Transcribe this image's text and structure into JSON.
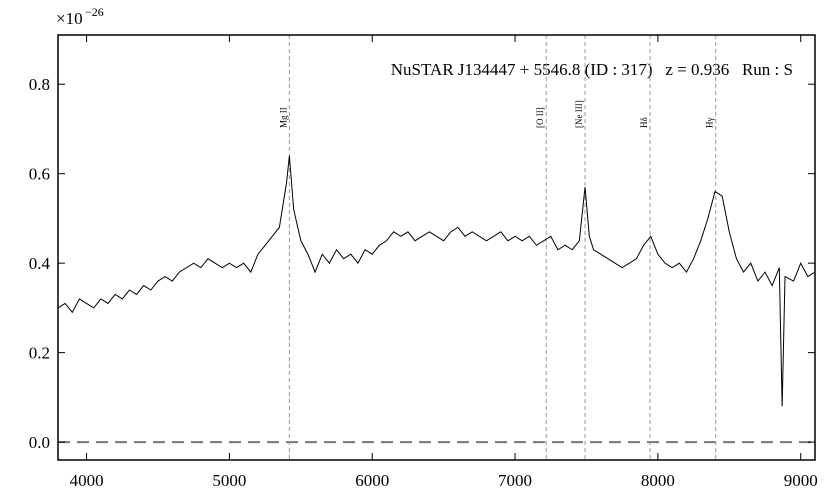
{
  "chart_data": {
    "type": "line",
    "title": "NuSTAR J134447 + 5546.8 (ID : 317)   z = 0.936   Run : S",
    "y_offset": {
      "base": "×10",
      "exponent": "−26"
    },
    "x": [
      3800,
      3850,
      3900,
      3950,
      4000,
      4050,
      4100,
      4150,
      4200,
      4250,
      4300,
      4350,
      4400,
      4450,
      4500,
      4550,
      4600,
      4650,
      4700,
      4750,
      4800,
      4850,
      4900,
      4950,
      5000,
      5050,
      5100,
      5150,
      5200,
      5250,
      5300,
      5350,
      5400,
      5420,
      5450,
      5500,
      5550,
      5600,
      5650,
      5700,
      5750,
      5800,
      5850,
      5900,
      5950,
      6000,
      6050,
      6100,
      6150,
      6200,
      6250,
      6300,
      6350,
      6400,
      6450,
      6500,
      6550,
      6600,
      6650,
      6700,
      6750,
      6800,
      6850,
      6900,
      6950,
      7000,
      7050,
      7100,
      7150,
      7200,
      7250,
      7300,
      7350,
      7400,
      7450,
      7490,
      7520,
      7550,
      7600,
      7650,
      7700,
      7750,
      7800,
      7850,
      7900,
      7950,
      8000,
      8050,
      8100,
      8150,
      8200,
      8250,
      8300,
      8350,
      8400,
      8450,
      8500,
      8550,
      8600,
      8650,
      8700,
      8750,
      8800,
      8850,
      8870,
      8890,
      8950,
      9000,
      9050,
      9100
    ],
    "series": [
      {
        "color": "#000000",
        "values": [
          0.3,
          0.31,
          0.29,
          0.32,
          0.31,
          0.3,
          0.32,
          0.31,
          0.33,
          0.32,
          0.34,
          0.33,
          0.35,
          0.34,
          0.36,
          0.37,
          0.36,
          0.38,
          0.39,
          0.4,
          0.39,
          0.41,
          0.4,
          0.39,
          0.4,
          0.39,
          0.4,
          0.38,
          0.42,
          0.44,
          0.46,
          0.48,
          0.58,
          0.64,
          0.52,
          0.45,
          0.42,
          0.38,
          0.42,
          0.4,
          0.43,
          0.41,
          0.42,
          0.4,
          0.43,
          0.42,
          0.44,
          0.45,
          0.47,
          0.46,
          0.47,
          0.45,
          0.46,
          0.47,
          0.46,
          0.45,
          0.47,
          0.48,
          0.46,
          0.47,
          0.46,
          0.45,
          0.46,
          0.47,
          0.45,
          0.46,
          0.45,
          0.46,
          0.44,
          0.45,
          0.46,
          0.43,
          0.44,
          0.43,
          0.45,
          0.57,
          0.46,
          0.43,
          0.42,
          0.41,
          0.4,
          0.39,
          0.4,
          0.41,
          0.44,
          0.46,
          0.42,
          0.4,
          0.39,
          0.4,
          0.38,
          0.41,
          0.45,
          0.5,
          0.56,
          0.55,
          0.47,
          0.41,
          0.38,
          0.4,
          0.36,
          0.38,
          0.35,
          0.39,
          0.08,
          0.37,
          0.36,
          0.4,
          0.37,
          0.38
        ]
      }
    ],
    "lines": [
      {
        "name": "Mg II",
        "x": 5420
      },
      {
        "name": "[O II]",
        "x": 7218
      },
      {
        "name": "[Ne III]",
        "x": 7490
      },
      {
        "name": "Hδ",
        "x": 7945
      },
      {
        "name": "Hγ",
        "x": 8405
      }
    ],
    "hline": 0,
    "xlim": [
      3800,
      9100
    ],
    "ylim": [
      -0.04,
      0.91
    ],
    "xticks": [
      4000,
      5000,
      6000,
      7000,
      8000,
      9000
    ],
    "yticks": [
      {
        "value": 0,
        "label": "0.0"
      },
      0.2,
      0.4,
      0.6,
      0.8
    ]
  }
}
